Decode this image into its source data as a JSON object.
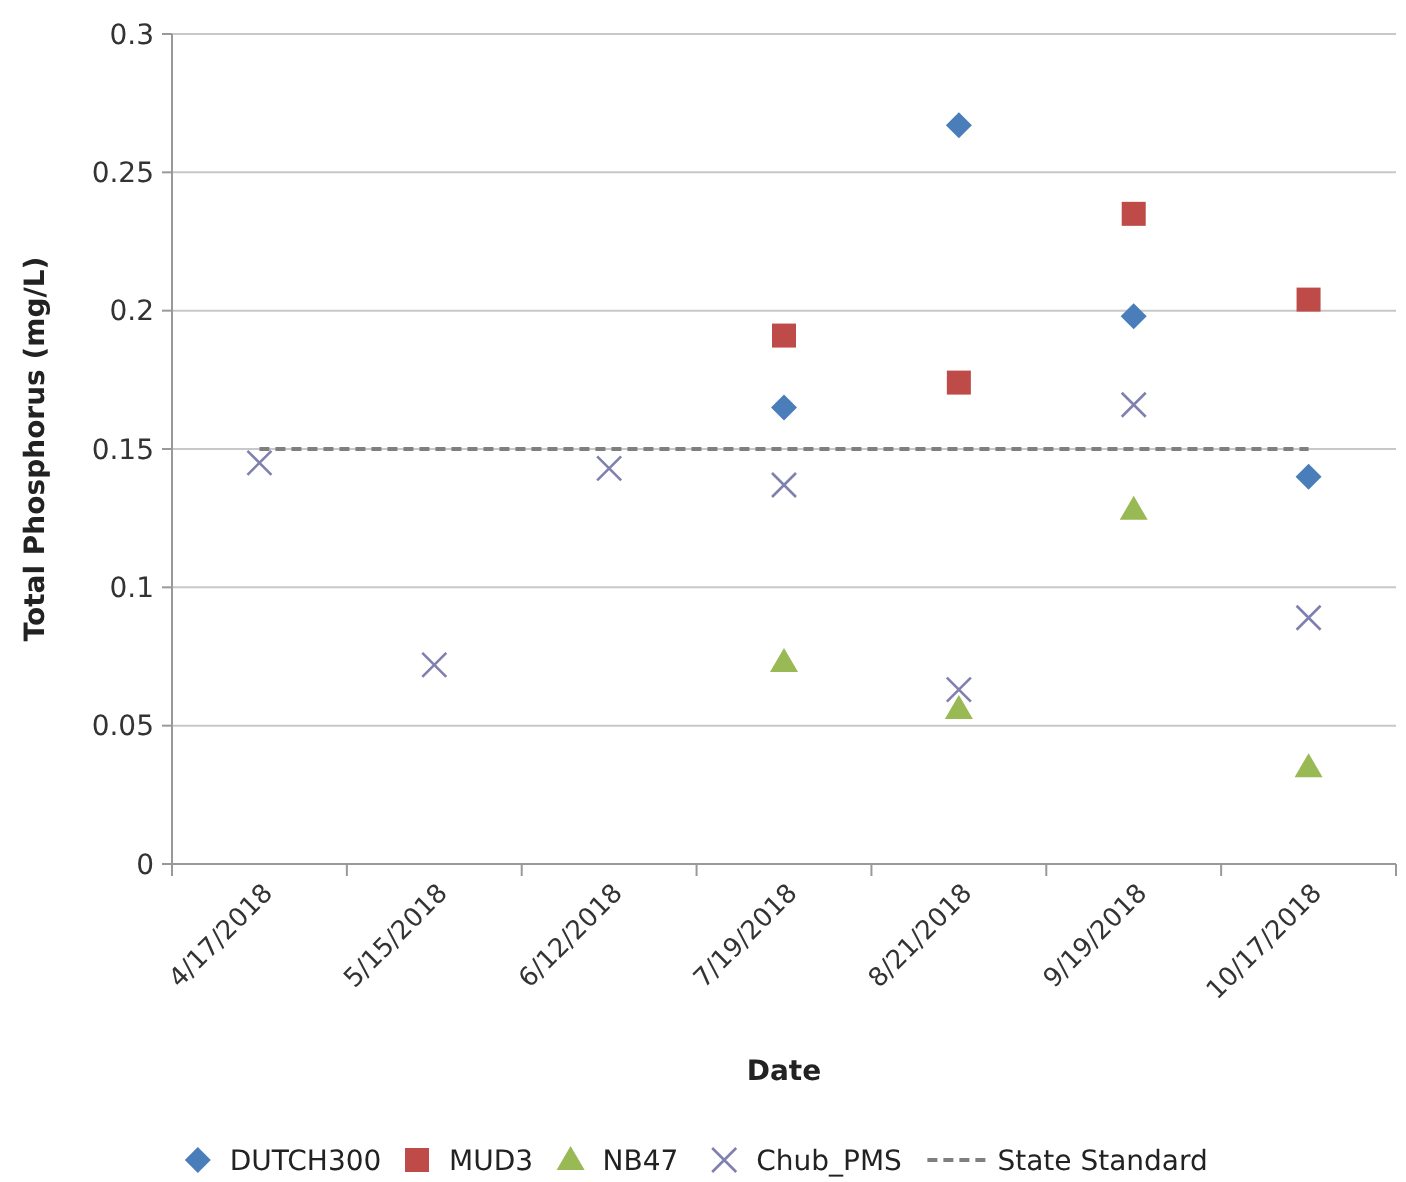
{
  "chart_data": {
    "type": "scatter",
    "xlabel": "Date",
    "ylabel": "Total Phosphorus (mg/L)",
    "categories": [
      "4/17/2018",
      "5/15/2018",
      "6/12/2018",
      "7/19/2018",
      "8/21/2018",
      "9/19/2018",
      "10/17/2018"
    ],
    "series": [
      {
        "name": "DUTCH300",
        "color": "#4a7ebb",
        "marker": "diamond",
        "values": [
          null,
          null,
          null,
          0.165,
          0.267,
          0.198,
          0.14
        ]
      },
      {
        "name": "MUD3",
        "color": "#be4b48",
        "marker": "square",
        "values": [
          null,
          null,
          null,
          0.191,
          0.174,
          0.235,
          0.204
        ]
      },
      {
        "name": "NB47",
        "color": "#98b954",
        "marker": "triangle",
        "values": [
          null,
          null,
          null,
          0.073,
          0.056,
          0.128,
          0.035
        ]
      },
      {
        "name": "Chub_PMS",
        "color": "#8080b0",
        "marker": "cross",
        "values": [
          0.145,
          0.072,
          0.143,
          0.137,
          0.063,
          0.166,
          0.089
        ]
      }
    ],
    "ref_lines": [
      {
        "axis": "y",
        "value": 0.15,
        "label": "State Standard",
        "color": "#7f7f7f",
        "line_style": "dashed"
      }
    ],
    "ylim": [
      0,
      0.3
    ],
    "yticks": [
      0,
      0.05,
      0.1,
      0.15,
      0.2,
      0.25,
      0.3
    ],
    "grid": "y",
    "legend": "bottom"
  }
}
